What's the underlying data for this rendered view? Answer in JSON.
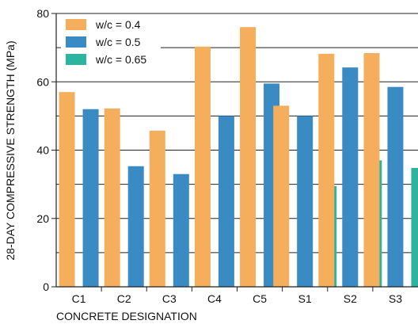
{
  "chart_data": {
    "type": "bar",
    "title": "",
    "xlabel": "CONCRETE DESIGNATION",
    "ylabel": "28-DAY COMPRESSIVE STRENGTH (MPa)",
    "ylim": [
      0,
      80
    ],
    "yticks": [
      "0",
      "20",
      "40",
      "60",
      "80"
    ],
    "grid": "horizontal",
    "legend_position": "top-left",
    "categories": [
      "C1",
      "C2",
      "C3",
      "C4",
      "C5",
      "S1",
      "S2",
      "S3"
    ],
    "series": [
      {
        "name": "w/c = 0.4",
        "color": "#F5AE5C",
        "values": [
          57.0,
          52.2,
          45.7,
          70.3,
          76.0,
          53.0,
          68.2,
          68.4
        ]
      },
      {
        "name": "w/c = 0.5",
        "color": "#3A8AC4",
        "values": [
          52.0,
          35.3,
          33.0,
          50.0,
          59.5,
          50.0,
          64.2,
          58.5
        ]
      },
      {
        "name": "w/c = 0.65",
        "color": "#2DB49E",
        "values": [
          null,
          null,
          null,
          null,
          null,
          29.5,
          37.0,
          34.8
        ]
      }
    ]
  }
}
